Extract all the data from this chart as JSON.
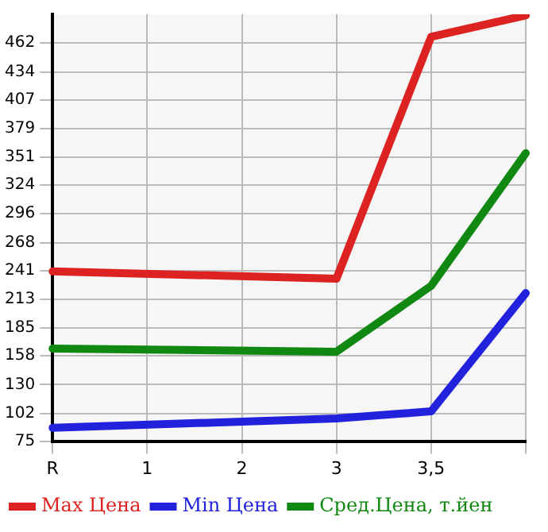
{
  "chart_data": {
    "type": "line",
    "categories": [
      "R",
      "1",
      "2",
      "3",
      "3,5",
      null
    ],
    "series": [
      {
        "name": "Max Цена",
        "color": "#dd2222",
        "values": [
          240,
          null,
          null,
          233,
          468,
          489
        ]
      },
      {
        "name": "Min Цена",
        "color": "#2222dd",
        "values": [
          88,
          null,
          null,
          97,
          104,
          219
        ]
      },
      {
        "name": "Сред.Цена, т.йен",
        "color": "#118811",
        "values": [
          165,
          null,
          null,
          162,
          226,
          355
        ]
      }
    ],
    "ylim": [
      75,
      490
    ],
    "yticks": [
      75,
      102,
      130,
      158,
      185,
      213,
      241,
      268,
      296,
      324,
      351,
      379,
      407,
      434,
      462
    ],
    "grid": true,
    "legend": "bottom",
    "marker": "none"
  }
}
